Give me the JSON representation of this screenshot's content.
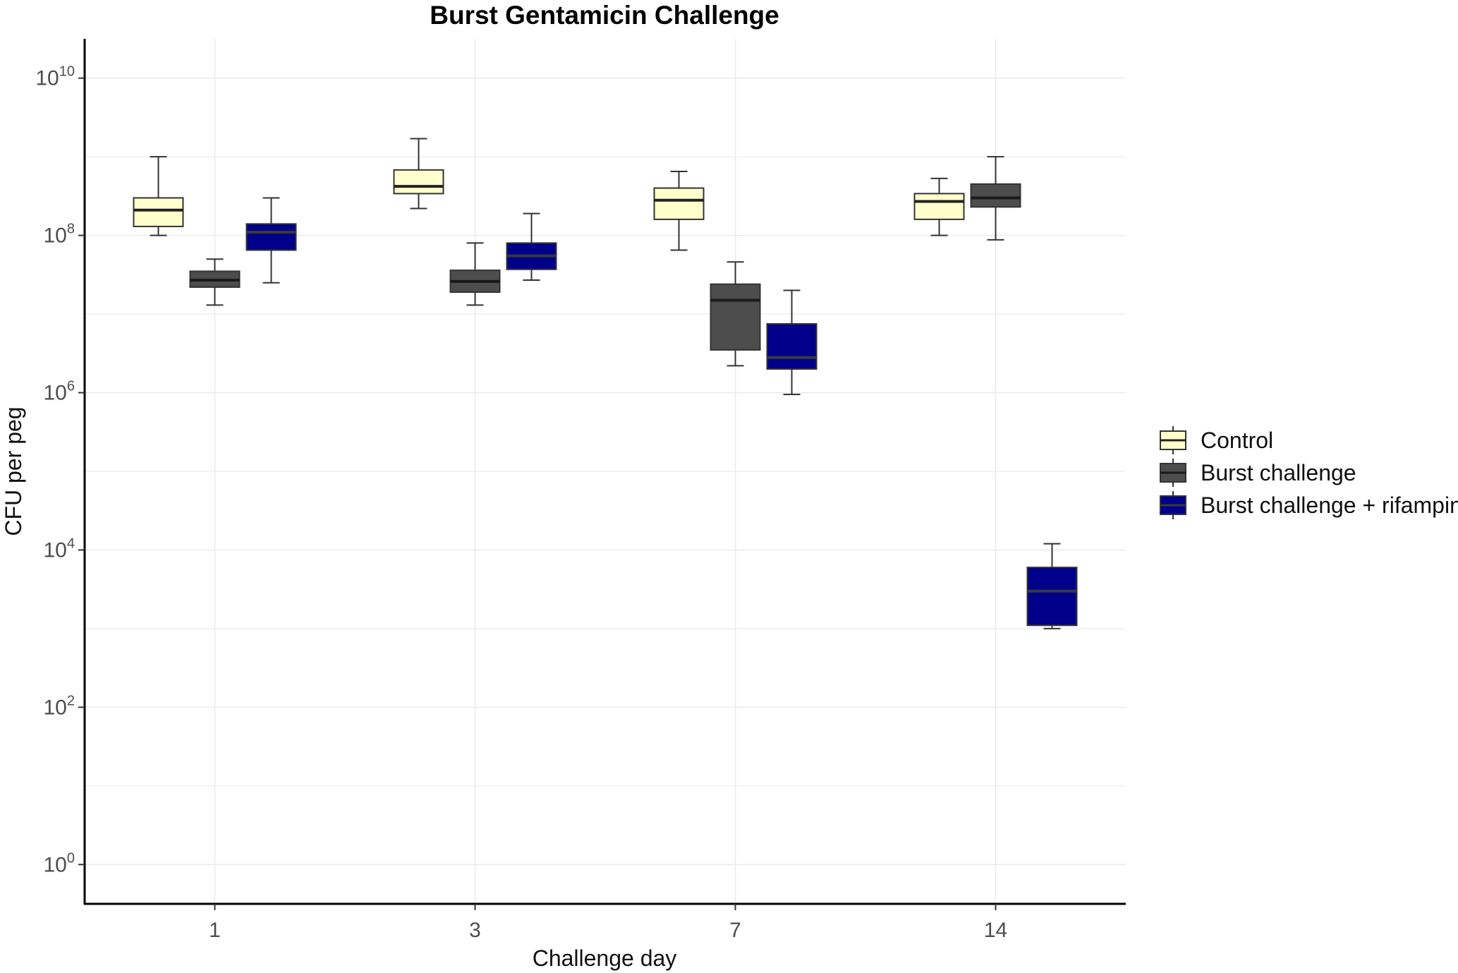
{
  "chart_data": {
    "type": "box",
    "title": "Burst Gentamicin Challenge",
    "xlabel": "Challenge day",
    "ylabel": "CFU per peg",
    "y_scale": "log10",
    "ylim_log10": [
      -0.5,
      10.5
    ],
    "yticks": [
      {
        "base": "10",
        "exp": "0",
        "value": 1
      },
      {
        "base": "10",
        "exp": "2",
        "value": 100
      },
      {
        "base": "10",
        "exp": "4",
        "value": 10000
      },
      {
        "base": "10",
        "exp": "6",
        "value": 1000000
      },
      {
        "base": "10",
        "exp": "8",
        "value": 100000000
      },
      {
        "base": "10",
        "exp": "10",
        "value": 10000000000
      }
    ],
    "categories": [
      "1",
      "3",
      "7",
      "14"
    ],
    "grid": true,
    "legend_position": "right",
    "series": [
      {
        "name": "Control",
        "color": "#ffffcc",
        "median_color": "#222222",
        "boxes": [
          {
            "category": "1",
            "min": 100000000.0,
            "q1": 130000000.0,
            "median": 210000000.0,
            "q3": 300000000.0,
            "max": 1000000000.0
          },
          {
            "category": "3",
            "min": 220000000.0,
            "q1": 340000000.0,
            "median": 420000000.0,
            "q3": 680000000.0,
            "max": 1700000000.0
          },
          {
            "category": "7",
            "min": 65000000.0,
            "q1": 160000000.0,
            "median": 280000000.0,
            "q3": 400000000.0,
            "max": 650000000.0
          },
          {
            "category": "14",
            "min": 100000000.0,
            "q1": 160000000.0,
            "median": 270000000.0,
            "q3": 340000000.0,
            "max": 530000000.0
          }
        ]
      },
      {
        "name": "Burst challenge",
        "color": "#4d4d4d",
        "median_color": "#1a1a1a",
        "boxes": [
          {
            "category": "1",
            "min": 13000000.0,
            "q1": 22000000.0,
            "median": 27000000.0,
            "q3": 35000000.0,
            "max": 50000000.0
          },
          {
            "category": "3",
            "min": 13000000.0,
            "q1": 19000000.0,
            "median": 26000000.0,
            "q3": 36000000.0,
            "max": 80000000.0
          },
          {
            "category": "7",
            "min": 2200000.0,
            "q1": 3500000.0,
            "median": 15000000.0,
            "q3": 24000000.0,
            "max": 46000000.0
          },
          {
            "category": "14",
            "min": 88000000.0,
            "q1": 230000000.0,
            "median": 300000000.0,
            "q3": 450000000.0,
            "max": 1000000000.0
          }
        ]
      },
      {
        "name": "Burst challenge + rifampin",
        "color": "#00008b",
        "median_color": "#3a3a3a",
        "boxes": [
          {
            "category": "1",
            "min": 25000000.0,
            "q1": 65000000.0,
            "median": 110000000.0,
            "q3": 140000000.0,
            "max": 300000000.0
          },
          {
            "category": "3",
            "min": 27000000.0,
            "q1": 37000000.0,
            "median": 55000000.0,
            "q3": 80000000.0,
            "max": 190000000.0
          },
          {
            "category": "7",
            "min": 950000.0,
            "q1": 2000000.0,
            "median": 2800000.0,
            "q3": 7500000.0,
            "max": 20000000.0
          },
          {
            "category": "14",
            "min": 1000,
            "q1": 1100,
            "median": 3000,
            "q3": 6000,
            "max": 12000.0
          }
        ]
      }
    ]
  }
}
